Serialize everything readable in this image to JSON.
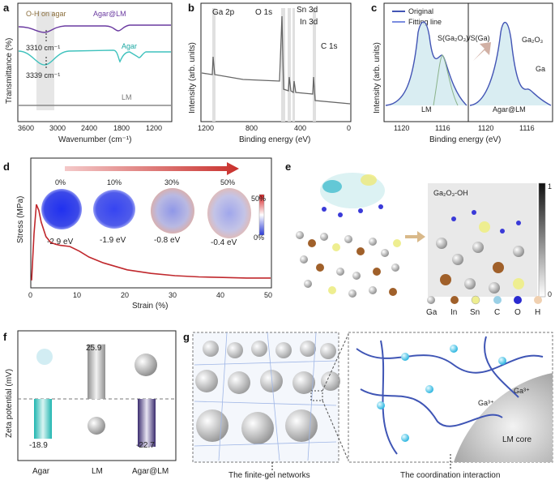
{
  "panels": {
    "a": {
      "label": "a",
      "xlabel": "Wavenumber (cm⁻¹)",
      "ylabel": "Transmittance (%)",
      "xticks": [
        "3600",
        "3000",
        "2400",
        "1800",
        "1200"
      ],
      "annotation": "O-H on agar",
      "peak_top": "3310 cm⁻¹",
      "peak_bottom": "3339 cm⁻¹",
      "series_labels": [
        "Agar@LM",
        "Agar",
        "LM"
      ]
    },
    "b": {
      "label": "b",
      "xlabel": "Binding energy (eV)",
      "ylabel": "Intensity (arb. units)",
      "xticks": [
        "1200",
        "800",
        "400",
        "0"
      ],
      "peaks": [
        "Ga 2p",
        "O 1s",
        "Sn 3d",
        "In 3d",
        "C 1s"
      ]
    },
    "c": {
      "label": "c",
      "xlabel": "Binding energy (eV)",
      "ylabel": "Intensity (arb. units)",
      "xticks": [
        "1120",
        "1116",
        "1120",
        "1116"
      ],
      "legend": [
        "Original",
        "Fitting line"
      ],
      "ratio_label": "S(Ga₂O₃)/S(Ga)",
      "component_labels": [
        "Ga₂O₃",
        "Ga"
      ],
      "sample_labels": [
        "LM",
        "Agar@LM"
      ]
    },
    "d": {
      "label": "d",
      "xlabel": "Strain (%)",
      "ylabel": "Stress (MPa)",
      "xticks": [
        "0",
        "10",
        "20",
        "30",
        "40",
        "50"
      ],
      "strain_labels": [
        "0%",
        "10%",
        "30%",
        "50%"
      ],
      "energies": [
        "-2.9 eV",
        "-1.9 eV",
        "-0.8 eV",
        "-0.4 eV"
      ],
      "colorbar": [
        "50%",
        "0%"
      ]
    },
    "e": {
      "label": "e",
      "region_label": "Ga₂O₃-OH",
      "colorbar": [
        "1",
        "0"
      ],
      "legend": [
        "Ga",
        "In",
        "Sn",
        "C",
        "O",
        "H"
      ]
    },
    "f": {
      "label": "f",
      "ylabel": "Zeta potential (mV)",
      "categories": [
        "Agar",
        "LM",
        "Agar@LM"
      ],
      "value_labels": [
        "-18.9",
        "25.9",
        "-22.7"
      ]
    },
    "g": {
      "label": "g",
      "caption_left": "The finite-gel networks",
      "caption_right": "The coordination interaction",
      "core_label": "LM core",
      "ion_label": "Ga³⁺"
    }
  },
  "chart_data": [
    {
      "type": "line",
      "panel": "d",
      "title": "",
      "xlabel": "Strain (%)",
      "ylabel": "Stress (MPa)",
      "xlim": [
        0,
        50
      ],
      "x": [
        0,
        0.5,
        1,
        1.5,
        2,
        3,
        4,
        5,
        6,
        8,
        10,
        12,
        15,
        20,
        25,
        30,
        35,
        40,
        45,
        50
      ],
      "y": [
        10,
        90,
        140,
        130,
        110,
        85,
        75,
        72,
        70,
        68,
        60,
        50,
        40,
        28,
        22,
        18,
        16,
        15,
        14,
        14
      ]
    },
    {
      "type": "bar",
      "panel": "f",
      "categories": [
        "Agar",
        "LM",
        "Agar@LM"
      ],
      "values": [
        -18.9,
        25.9,
        -22.7
      ]
    }
  ]
}
